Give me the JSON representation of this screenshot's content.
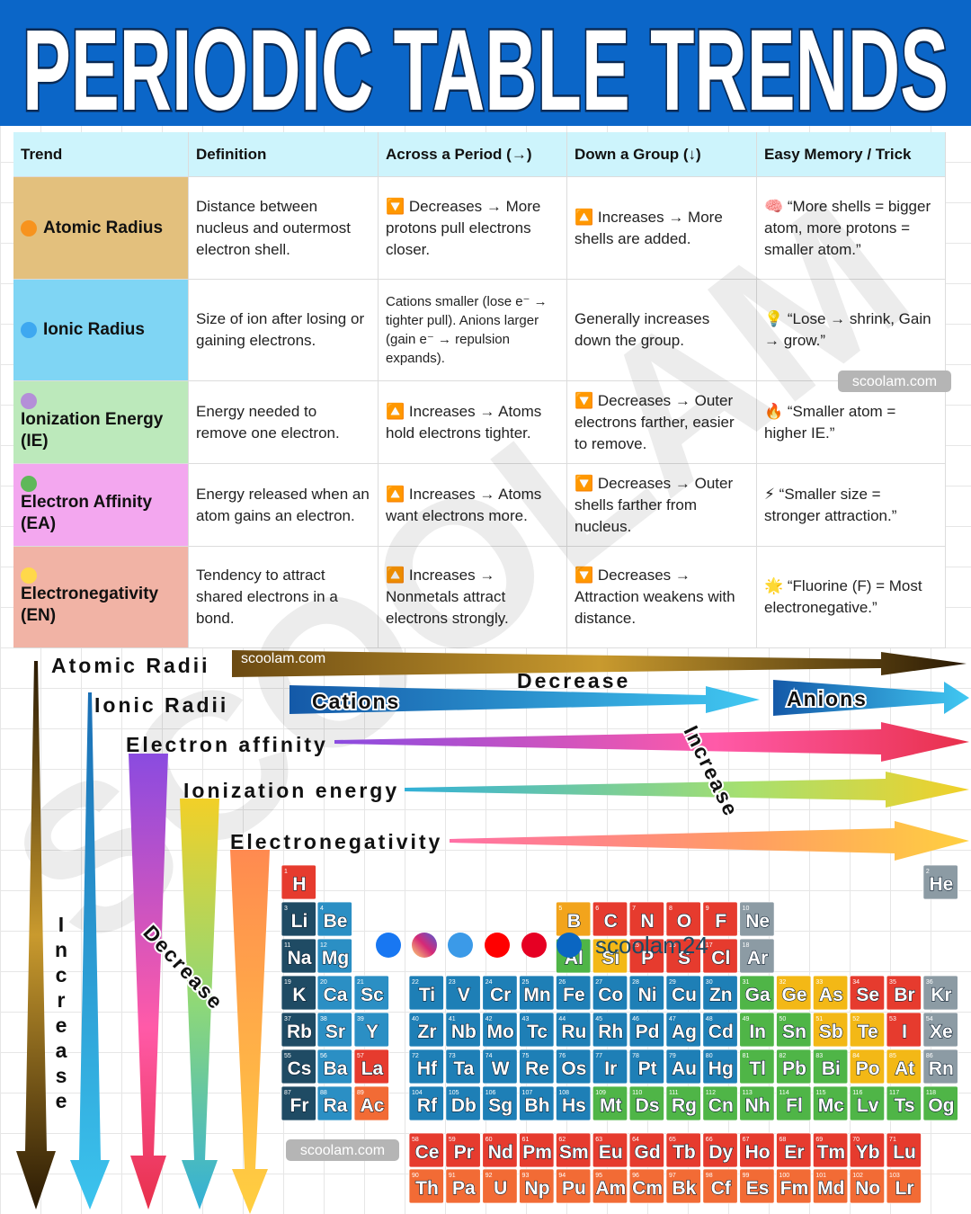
{
  "header": {
    "title": "PERIODIC TABLE TRENDS"
  },
  "table": {
    "headers": [
      "Trend",
      "Definition",
      "Across a Period (→)",
      "Down a Group (↓)",
      "Easy Memory / Trick"
    ],
    "rows": [
      [
        "Atomic Radius",
        "Distance between nucleus and outermost electron shell.",
        "🔽 Decreases → More protons pull electrons closer.",
        "🔼 Increases → More shells are added.",
        "🧠 “More shells = bigger atom, more protons = smaller atom.”"
      ],
      [
        "Ionic Radius",
        "Size of ion after losing or gaining electrons.",
        "Cations smaller (lose e⁻ → tighter pull). Anions larger (gain e⁻ → repulsion expands).",
        "Generally increases down the group.",
        "💡 “Lose → shrink, Gain → grow.”"
      ],
      [
        "Ionization Energy (IE)",
        "Energy needed to remove one electron.",
        "🔼 Increases → Atoms hold electrons tighter.",
        "🔽 Decreases → Outer electrons farther, easier to remove.",
        "🔥 “Smaller atom = higher IE.”"
      ],
      [
        "Electron Affinity (EA)",
        "Energy released when an atom gains an electron.",
        "🔼 Increases → Atoms want electrons more.",
        "🔽 Decreases → Outer shells farther from nucleus.",
        "⚡ “Smaller size = stronger attraction.”"
      ],
      [
        "Electronegativity (EN)",
        "Tendency to attract shared electrons in a bond.",
        "🔼 Increases → Nonmetals attract electrons strongly.",
        "🔽 Decreases → Attraction weakens with distance.",
        "🌟 “Fluorine (F) = Most electronegative.”"
      ]
    ]
  },
  "trends_diagram": {
    "atomic_radii": "Atomic Radii",
    "ionic_radii": "Ionic Radii",
    "cations": "Cations",
    "anions": "Anions",
    "electron_affinity": "Electron affinity",
    "ionization_energy": "Ionization energy",
    "electronegativity": "Electronegativity",
    "decrease": "Decrease",
    "increase": "Increase"
  },
  "periodic_table": {
    "symbols": [
      "H",
      "He",
      "Li",
      "Be",
      "B",
      "C",
      "N",
      "O",
      "F",
      "Ne",
      "Na",
      "Mg",
      "Al",
      "Si",
      "P",
      "S",
      "Cl",
      "Ar",
      "K",
      "Ca",
      "Sc",
      "Ti",
      "V",
      "Cr",
      "Mn",
      "Fe",
      "Co",
      "Ni",
      "Cu",
      "Zn",
      "Ga",
      "Ge",
      "As",
      "Se",
      "Br",
      "Kr",
      "Rb",
      "Sr",
      "Y",
      "Zr",
      "Nb",
      "Mo",
      "Tc",
      "Ru",
      "Rh",
      "Pd",
      "Ag",
      "Cd",
      "In",
      "Sn",
      "Sb",
      "Te",
      "I",
      "Xe",
      "Cs",
      "Ba",
      "La",
      "Ce",
      "Pr",
      "Nd",
      "Pm",
      "Sm",
      "Eu",
      "Gd",
      "Tb",
      "Dy",
      "Ho",
      "Er",
      "Tm",
      "Yb",
      "Lu",
      "Hf",
      "Ta",
      "W",
      "Re",
      "Os",
      "Ir",
      "Pt",
      "Au",
      "Hg",
      "Tl",
      "Pb",
      "Bi",
      "Po",
      "At",
      "Rn",
      "Fr",
      "Ra",
      "Ac",
      "Th",
      "Pa",
      "U",
      "Np",
      "Pu",
      "Am",
      "Cm",
      "Bk",
      "Cf",
      "Es",
      "Fm",
      "Md",
      "No",
      "Lr",
      "Rf",
      "Db",
      "Sg",
      "Bh",
      "Hs",
      "Mt",
      "Ds",
      "Rg",
      "Cn",
      "Nh",
      "Fl",
      "Mc",
      "Lv",
      "Ts",
      "Og"
    ],
    "numbers": [
      1,
      2,
      3,
      4,
      5,
      6,
      7,
      8,
      9,
      10,
      11,
      12,
      13,
      14,
      15,
      16,
      17,
      18,
      19,
      20,
      21,
      22,
      23,
      24,
      25,
      26,
      27,
      28,
      29,
      30,
      31,
      32,
      33,
      34,
      35,
      36,
      37,
      38,
      39,
      40,
      41,
      42,
      43,
      44,
      45,
      46,
      47,
      48,
      49,
      50,
      51,
      52,
      53,
      54,
      55,
      56,
      57,
      58,
      59,
      60,
      61,
      62,
      63,
      64,
      65,
      66,
      67,
      68,
      69,
      70,
      71,
      72,
      73,
      74,
      75,
      76,
      77,
      78,
      79,
      80,
      81,
      82,
      83,
      84,
      85,
      86,
      87,
      88,
      89,
      90,
      91,
      92,
      93,
      94,
      95,
      96,
      97,
      98,
      99,
      100,
      101,
      102,
      103,
      104,
      105,
      106,
      107,
      108,
      109,
      110,
      111,
      112,
      113,
      114,
      115,
      116,
      117,
      118
    ]
  },
  "social": {
    "handle": "scoolam24"
  },
  "watermark": "scoolam.com",
  "watermark_large": "SCOOLAM"
}
